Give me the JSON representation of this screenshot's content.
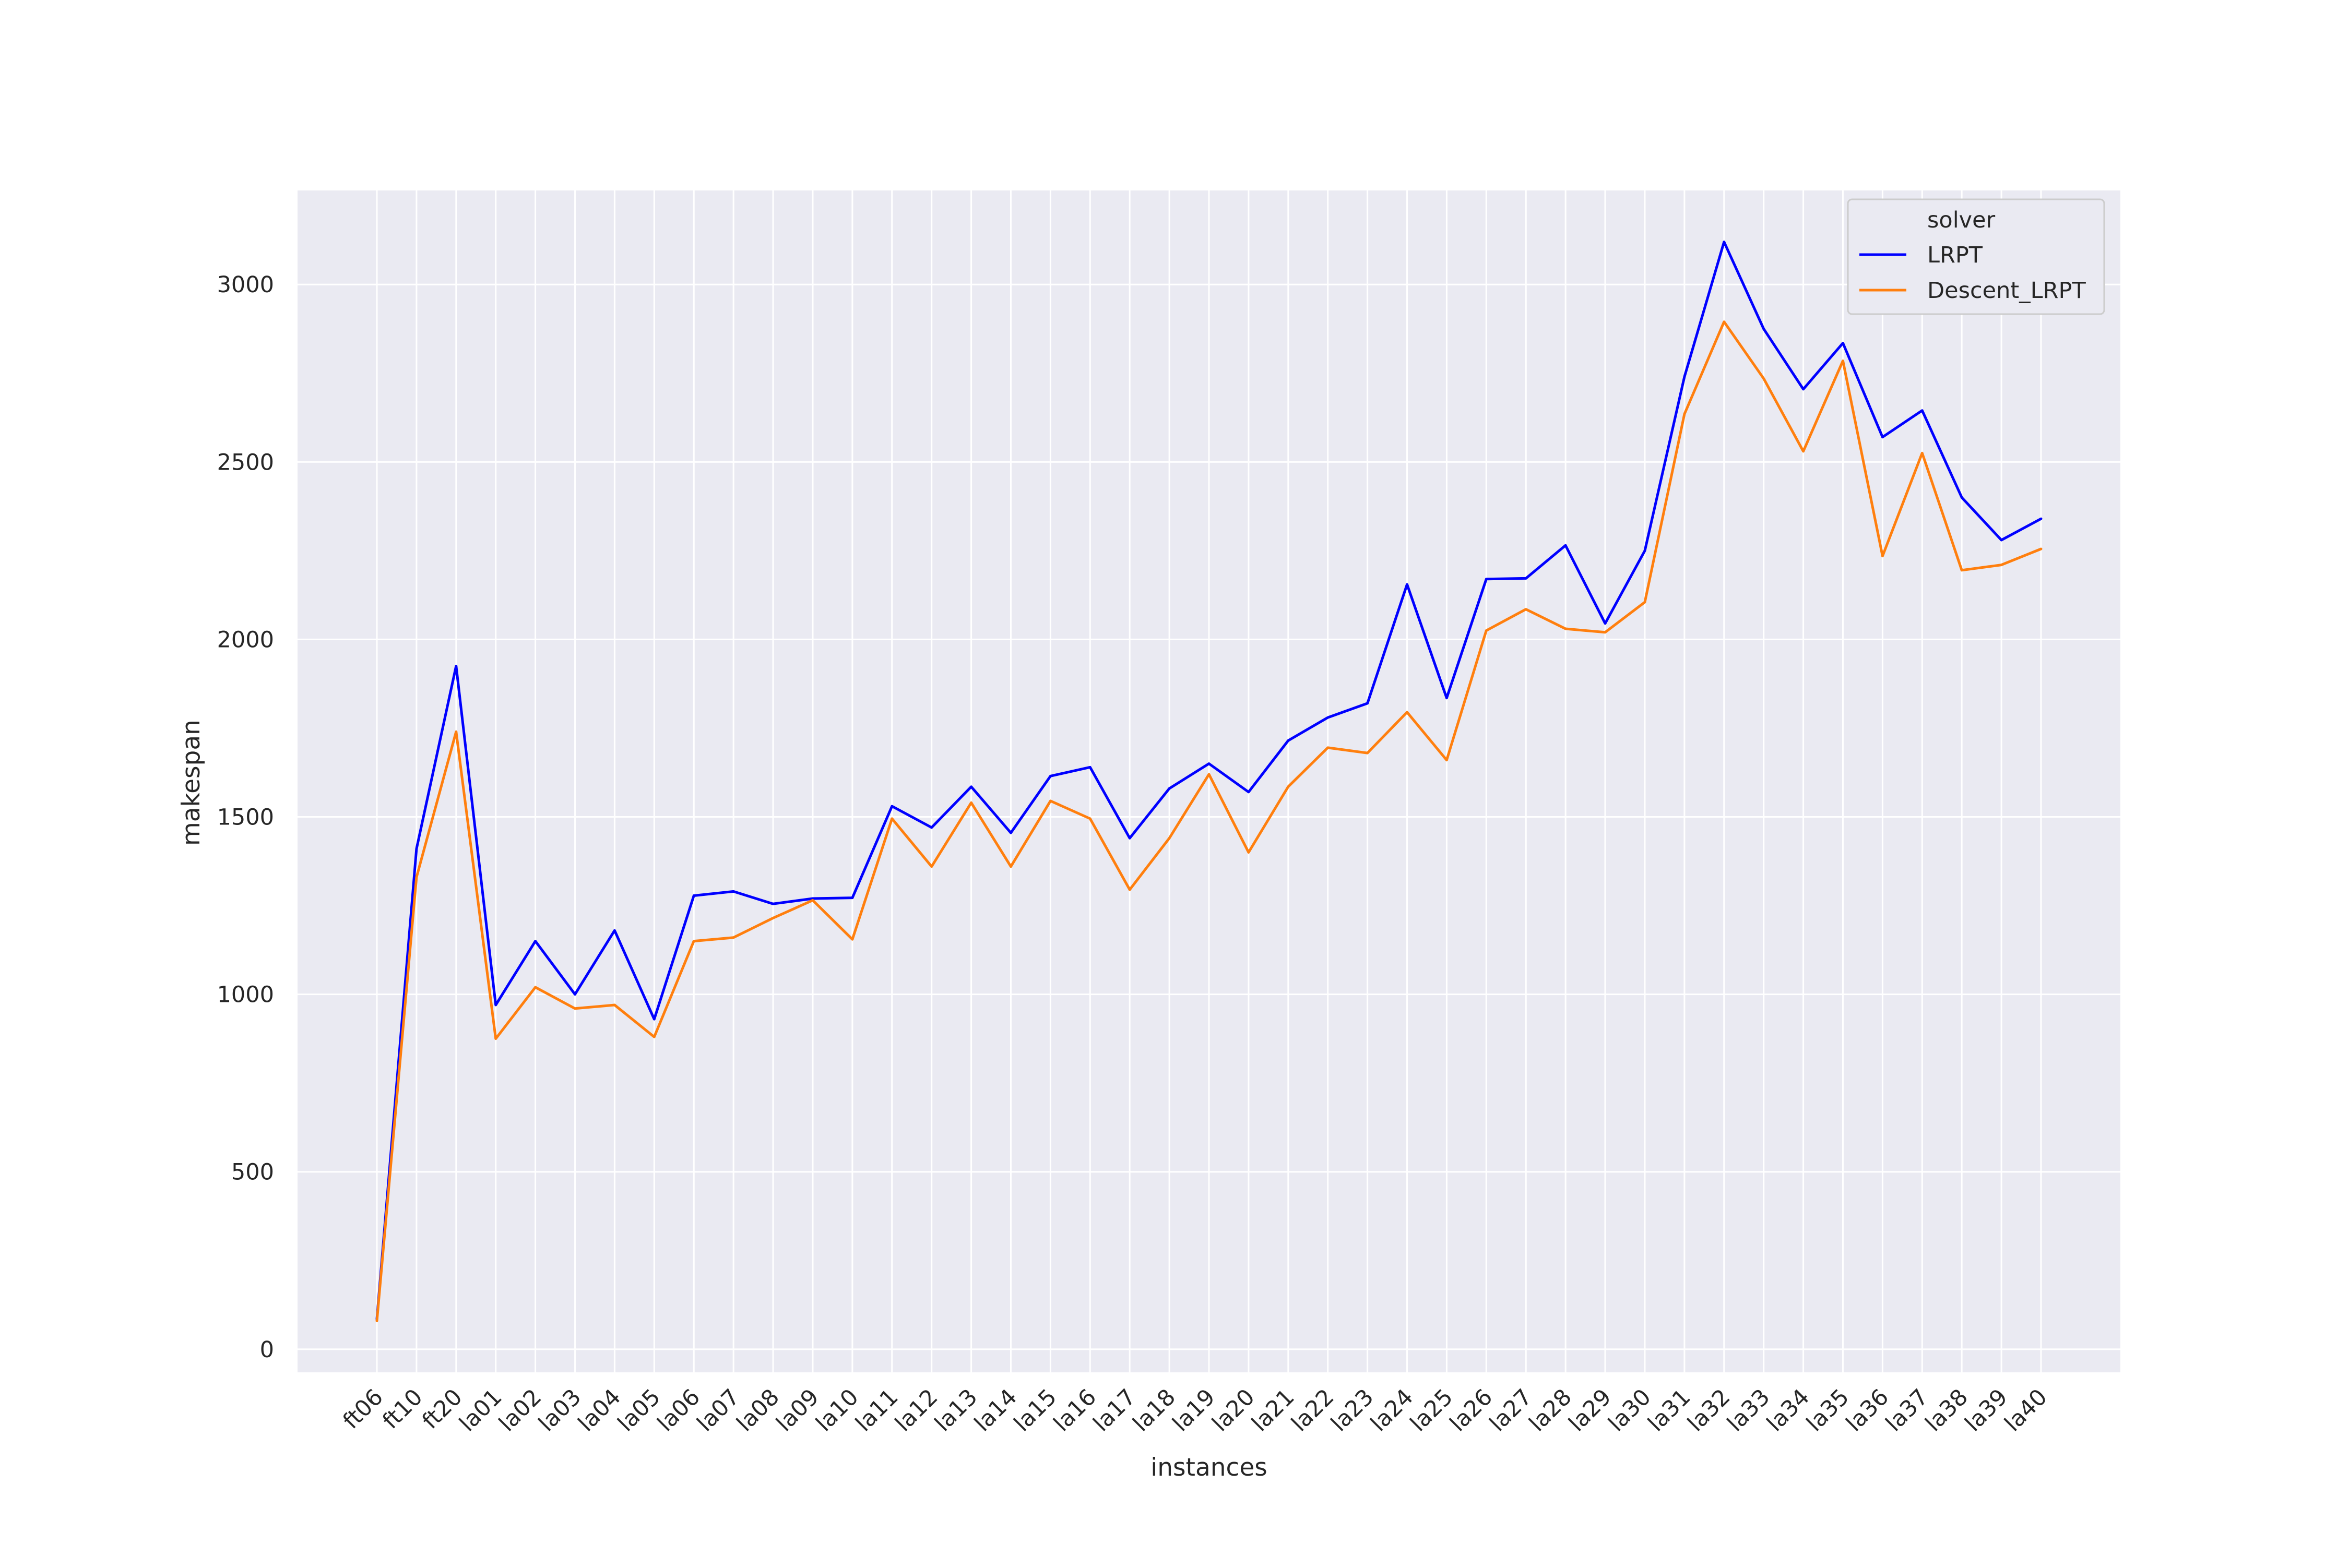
{
  "colors": {
    "plot_background": "#eaeaf2",
    "grid": "#ffffff",
    "text": "#262626",
    "legend_frame": "#cccccc",
    "legend_background": "#eaeaf2"
  },
  "chart_data": {
    "type": "line",
    "xlabel": "instances",
    "ylabel": "makespan",
    "categories": [
      "ft06",
      "ft10",
      "ft20",
      "la01",
      "la02",
      "la03",
      "la04",
      "la05",
      "la06",
      "la07",
      "la08",
      "la09",
      "la10",
      "la11",
      "la12",
      "la13",
      "la14",
      "la15",
      "la16",
      "la17",
      "la18",
      "la19",
      "la20",
      "la21",
      "la22",
      "la23",
      "la24",
      "la25",
      "la26",
      "la27",
      "la28",
      "la29",
      "la30",
      "la31",
      "la32",
      "la33",
      "la34",
      "la35",
      "la36",
      "la37",
      "la38",
      "la39",
      "la40"
    ],
    "ylim": [
      -65,
      3265
    ],
    "yticks": [
      0,
      500,
      1000,
      1500,
      2000,
      2500,
      3000
    ],
    "grid": true,
    "legend": {
      "title": "solver",
      "placement": "top-right"
    },
    "series": [
      {
        "name": "LRPT",
        "color": "#0000ff",
        "values": [
          85,
          1410,
          1925,
          970,
          1150,
          1000,
          1180,
          930,
          1278,
          1290,
          1255,
          1270,
          1272,
          1530,
          1470,
          1585,
          1455,
          1615,
          1640,
          1440,
          1580,
          1650,
          1570,
          1715,
          1780,
          1820,
          2155,
          1835,
          2170,
          2172,
          2265,
          2045,
          2250,
          2740,
          3120,
          2875,
          2705,
          2835,
          2570,
          2645,
          2400,
          2280,
          2340
        ]
      },
      {
        "name": "Descent_LRPT",
        "color": "#ff7f0e",
        "values": [
          80,
          1330,
          1740,
          875,
          1020,
          960,
          970,
          880,
          1150,
          1160,
          1215,
          1265,
          1155,
          1495,
          1360,
          1540,
          1360,
          1545,
          1495,
          1295,
          1440,
          1620,
          1400,
          1585,
          1695,
          1680,
          1795,
          1660,
          2025,
          2085,
          2030,
          2020,
          2105,
          2635,
          2895,
          2735,
          2530,
          2785,
          2235,
          2525,
          2195,
          2210,
          2255
        ]
      }
    ]
  }
}
